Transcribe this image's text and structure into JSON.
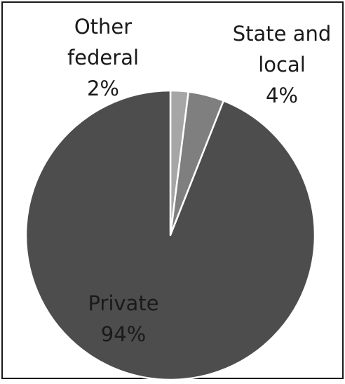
{
  "chart_data": {
    "type": "pie",
    "title": "",
    "slices": [
      {
        "label_lines": [
          "Other",
          "federal"
        ],
        "pct_label": "2%",
        "value": 2,
        "color": "#a6a6a6"
      },
      {
        "label_lines": [
          "State and",
          "local"
        ],
        "pct_label": "4%",
        "value": 4,
        "color": "#7f7f7f"
      },
      {
        "label_lines": [
          "Private"
        ],
        "pct_label": "94%",
        "value": 94,
        "color": "#4d4d4d"
      }
    ],
    "start_angle": "12 o'clock",
    "direction": "clockwise",
    "slice_border_color": "#ffffff",
    "frame_border_color": "#1a1a1a"
  }
}
